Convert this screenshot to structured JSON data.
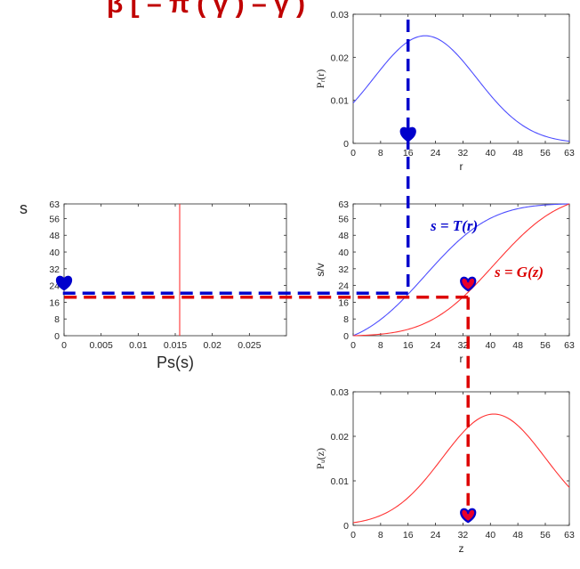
{
  "title": "β [ – π ( γ )   – γ )",
  "colors": {
    "blue": "#0000cc",
    "red": "#dd0000",
    "t_curve": "#4d4dff",
    "g_curve": "#ff3333",
    "heart_red": "#e8002a",
    "axis": "#262626"
  },
  "s_label": "s",
  "formulas": {
    "T": "s = T(r)",
    "G": "s = G(z)"
  },
  "chart_data": [
    {
      "id": "pr",
      "type": "line",
      "title": "",
      "xlabel": "r",
      "ylabel": "Pᵣ(r)",
      "xlim": [
        0,
        63
      ],
      "ylim": [
        0,
        0.03
      ],
      "xticks": [
        0,
        8,
        16,
        24,
        32,
        40,
        48,
        56,
        63
      ],
      "yticks": [
        0,
        0.01,
        0.02,
        0.03
      ],
      "ytick_labels": [
        "0",
        "0.01",
        "0.02",
        "0.03"
      ],
      "series": [
        {
          "name": "P_r",
          "mean": 21,
          "sigma": 15,
          "peak": 0.025
        }
      ]
    },
    {
      "id": "transform",
      "type": "line",
      "title": "",
      "xlabel": "r",
      "ylabel": "s/v",
      "xlim": [
        0,
        63
      ],
      "ylim": [
        0,
        63
      ],
      "xticks": [
        0,
        8,
        16,
        24,
        32,
        40,
        48,
        56,
        63
      ],
      "yticks": [
        0,
        8,
        16,
        24,
        32,
        40,
        48,
        56,
        63
      ],
      "series": [
        {
          "name": "T(r)",
          "mean": 21,
          "sigma": 15
        },
        {
          "name": "G(z)",
          "mean": 41,
          "sigma": 15
        }
      ]
    },
    {
      "id": "ps",
      "type": "line",
      "title": "",
      "xlabel": "Ps(s)",
      "ylabel": "",
      "xlim": [
        0,
        0.03
      ],
      "ylim": [
        0,
        63
      ],
      "xticks": [
        0,
        0.005,
        0.01,
        0.015,
        0.02,
        0.025
      ],
      "xtick_labels": [
        "0",
        "0.005",
        "0.01",
        "0.015",
        "0.02",
        "0.025"
      ],
      "yticks": [
        0,
        8,
        16,
        24,
        32,
        40,
        48,
        56,
        63
      ],
      "series": [
        {
          "name": "uniform",
          "value": 0.0156
        }
      ]
    },
    {
      "id": "pz",
      "type": "line",
      "title": "",
      "xlabel": "z",
      "ylabel": "Pᵤ(z)",
      "xlim": [
        0,
        63
      ],
      "ylim": [
        0,
        0.03
      ],
      "xticks": [
        0,
        8,
        16,
        24,
        32,
        40,
        48,
        56,
        63
      ],
      "yticks": [
        0,
        0.01,
        0.02,
        0.03
      ],
      "ytick_labels": [
        "0",
        "0.01",
        "0.02",
        "0.03"
      ],
      "series": [
        {
          "name": "P_z",
          "mean": 41,
          "sigma": 15,
          "peak": 0.025
        }
      ]
    }
  ],
  "mapping": {
    "r_value": 16,
    "s_value": 19.5,
    "z_value": 33.5
  }
}
